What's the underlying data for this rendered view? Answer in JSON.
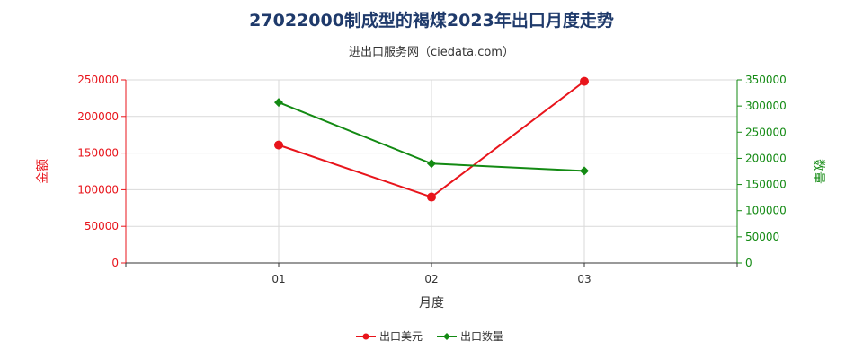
{
  "chart_data": {
    "type": "line",
    "title": "27022000制成型的褐煤2023年出口月度走势",
    "subtitle": "进出口服务网（ciedata.com）",
    "xlabel": "月度",
    "ylabel_left": "金额",
    "ylabel_right": "数量",
    "categories": [
      "01",
      "02",
      "03"
    ],
    "xrange": [
      0,
      4
    ],
    "ylim_left": [
      0,
      250000
    ],
    "ylim_right": [
      0,
      350000
    ],
    "yticks_left": [
      "0",
      "50000",
      "100000",
      "150000",
      "200000",
      "250000"
    ],
    "yticks_right": [
      "0",
      "50000",
      "100000",
      "150000",
      "200000",
      "250000",
      "300000",
      "350000"
    ],
    "grid": true,
    "legend_position": "bottom",
    "series": [
      {
        "name": "出口美元",
        "axis": "left",
        "color": "#e8141b",
        "marker": "circle",
        "values": [
          161000,
          90000,
          248000
        ]
      },
      {
        "name": "出口数量",
        "axis": "right",
        "color": "#138a13",
        "marker": "diamond",
        "values": [
          307000,
          190000,
          176000
        ]
      }
    ],
    "colors": {
      "left_axis": "#e8141b",
      "right_axis": "#138a13",
      "grid": "#d9d9d9",
      "axis": "#333333"
    }
  }
}
